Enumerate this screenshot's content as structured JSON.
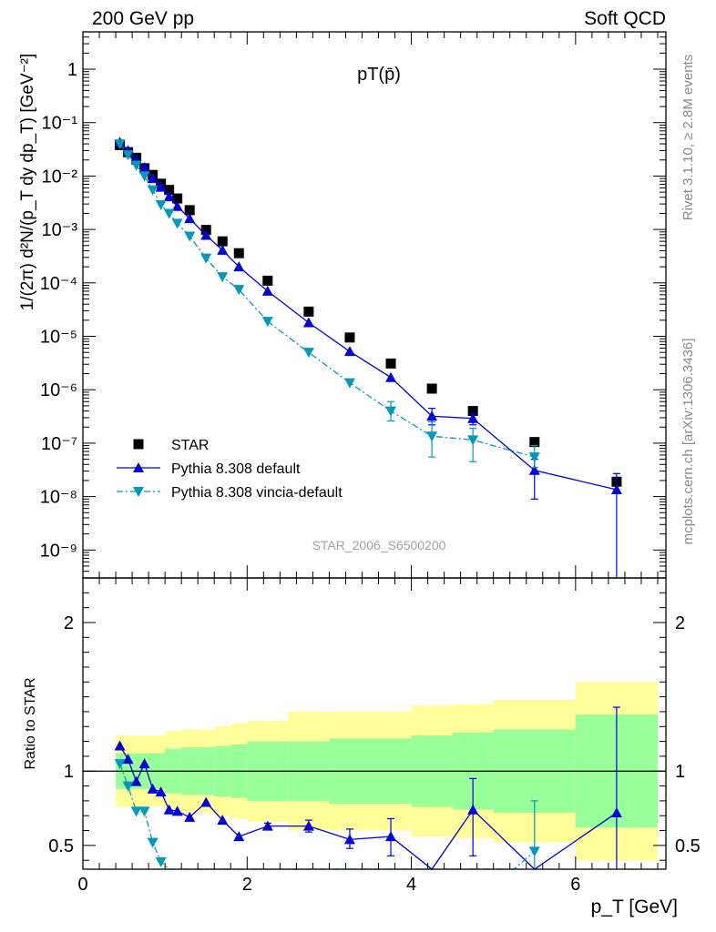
{
  "header": {
    "left": "200 GeV pp",
    "right": "Soft QCD",
    "plot_title": "pT(p̄)"
  },
  "side_labels": {
    "rivet": "Rivet 3.1.10, ≥ 2.8M events",
    "mcplots": "mcplots.cern.ch [arXiv:1306.3436]"
  },
  "watermark": "STAR_2006_S6500200",
  "colors": {
    "data": "#000000",
    "default": "#0000dd",
    "vincia": "#0099bb",
    "band_inner": "#99ff99",
    "band_outer": "#ffff99"
  },
  "chart_data": [
    {
      "type": "scatter",
      "panel": "main",
      "ylabel": "1/(2π) d²N/(p_T dy dp_T) [GeV⁻²]",
      "yscale": "log",
      "ylim": [
        3e-10,
        5
      ],
      "xlim": [
        0,
        7.1
      ],
      "ytick_labels": [
        "10⁻⁹",
        "10⁻⁸",
        "10⁻⁷",
        "10⁻⁶",
        "10⁻⁵",
        "10⁻⁴",
        "10⁻³",
        "10⁻²",
        "10⁻¹",
        "1"
      ],
      "legend_position": "lower-left",
      "series": [
        {
          "name": "STAR",
          "marker": "square",
          "x": [
            0.45,
            0.55,
            0.65,
            0.75,
            0.85,
            0.95,
            1.05,
            1.15,
            1.3,
            1.5,
            1.7,
            1.9,
            2.25,
            2.75,
            3.25,
            3.75,
            4.25,
            4.75,
            5.5,
            6.5
          ],
          "y": [
            0.038,
            0.028,
            0.022,
            0.014,
            0.0105,
            0.0072,
            0.0055,
            0.0038,
            0.0023,
            0.00098,
            0.0006,
            0.00036,
            0.00011,
            2.9e-05,
            9.5e-06,
            3.1e-06,
            1.05e-06,
            4e-07,
            1.05e-07,
            1.9e-08
          ]
        },
        {
          "name": "Pythia 8.308 default",
          "marker": "triangle-up",
          "x": [
            0.45,
            0.55,
            0.65,
            0.75,
            0.85,
            0.95,
            1.05,
            1.15,
            1.3,
            1.5,
            1.7,
            1.9,
            2.25,
            2.75,
            3.25,
            3.75,
            4.25,
            4.75,
            5.5,
            6.5
          ],
          "y": [
            0.043,
            0.03,
            0.02,
            0.0145,
            0.009,
            0.0062,
            0.0041,
            0.0027,
            0.0016,
            0.00078,
            0.00041,
            0.0002,
            7e-05,
            1.8e-05,
            5.2e-06,
            1.7e-06,
            3.2e-07,
            2.9e-07,
            3.1e-08,
            1.35e-08
          ],
          "err_low": [
            null,
            null,
            null,
            null,
            null,
            null,
            null,
            null,
            null,
            null,
            null,
            null,
            null,
            null,
            null,
            null,
            2.2e-07,
            2.2e-07,
            9e-09,
            3e-10
          ],
          "err_high": [
            null,
            null,
            null,
            null,
            null,
            null,
            null,
            null,
            null,
            null,
            null,
            null,
            null,
            null,
            null,
            null,
            4.5e-07,
            3.6e-07,
            5e-08,
            2.7e-08
          ]
        },
        {
          "name": "Pythia 8.308 vincia-default",
          "marker": "triangle-down",
          "x": [
            0.45,
            0.55,
            0.65,
            0.75,
            0.85,
            0.95,
            1.05,
            1.15,
            1.3,
            1.5,
            1.7,
            1.9,
            2.25,
            2.75,
            3.25,
            3.75,
            4.25,
            4.75,
            5.5
          ],
          "y": [
            0.04,
            0.025,
            0.016,
            0.01,
            0.0055,
            0.0029,
            0.002,
            0.0013,
            0.00075,
            0.00029,
            0.00013,
            7.5e-05,
            1.9e-05,
            5e-06,
            1.35e-06,
            4e-07,
            1.35e-07,
            1.15e-07,
            5.5e-08
          ],
          "err_low": [
            null,
            null,
            null,
            null,
            null,
            null,
            null,
            null,
            null,
            null,
            null,
            null,
            null,
            null,
            null,
            2.6e-07,
            5.5e-08,
            4.5e-08,
            3.5e-08
          ],
          "err_high": [
            null,
            null,
            null,
            null,
            null,
            null,
            null,
            null,
            null,
            null,
            null,
            null,
            null,
            null,
            null,
            6e-07,
            2.5e-07,
            1.9e-07,
            9e-08
          ]
        }
      ]
    },
    {
      "type": "line",
      "panel": "ratio",
      "xlabel": "p_T [GeV]",
      "ylabel": "Ratio to STAR",
      "ylim": [
        0.34,
        2.3
      ],
      "xlim": [
        0,
        7.1
      ],
      "xticks": [
        0,
        2,
        4,
        6
      ],
      "yticks": [
        0.5,
        1,
        2
      ],
      "bands": {
        "x_edges": [
          0.4,
          1.0,
          1.2,
          1.4,
          1.6,
          1.8,
          2.0,
          2.5,
          3.0,
          3.5,
          4.0,
          4.5,
          5.0,
          6.0,
          7.0
        ],
        "inner_low": [
          0.88,
          0.85,
          0.84,
          0.84,
          0.83,
          0.82,
          0.8,
          0.8,
          0.78,
          0.78,
          0.76,
          0.74,
          0.72,
          0.62
        ],
        "inner_high": [
          1.12,
          1.15,
          1.16,
          1.16,
          1.17,
          1.18,
          1.2,
          1.2,
          1.22,
          1.22,
          1.24,
          1.26,
          1.28,
          1.38
        ],
        "outer_low": [
          0.76,
          0.73,
          0.72,
          0.72,
          0.7,
          0.68,
          0.66,
          0.6,
          0.6,
          0.6,
          0.56,
          0.55,
          0.52,
          0.4
        ],
        "outer_high": [
          1.24,
          1.27,
          1.28,
          1.28,
          1.3,
          1.32,
          1.34,
          1.4,
          1.4,
          1.4,
          1.44,
          1.45,
          1.48,
          1.6
        ]
      },
      "series": [
        {
          "name": "Pythia 8.308 default",
          "x": [
            0.45,
            0.55,
            0.65,
            0.75,
            0.85,
            0.95,
            1.05,
            1.15,
            1.3,
            1.5,
            1.7,
            1.9,
            2.25,
            2.75,
            3.25,
            3.75,
            4.25,
            4.75,
            5.5,
            6.5
          ],
          "y": [
            1.17,
            1.08,
            0.93,
            1.05,
            0.88,
            0.86,
            0.74,
            0.73,
            0.69,
            0.79,
            0.67,
            0.56,
            0.63,
            0.63,
            0.54,
            0.56,
            0.3,
            0.74,
            0.3,
            0.72
          ],
          "err_low": [
            null,
            null,
            null,
            null,
            null,
            null,
            null,
            null,
            null,
            null,
            null,
            null,
            0.61,
            0.59,
            0.48,
            0.43,
            null,
            0.43,
            null,
            0.34
          ],
          "err_high": [
            null,
            null,
            null,
            null,
            null,
            null,
            null,
            null,
            null,
            null,
            null,
            null,
            0.65,
            0.67,
            0.61,
            0.68,
            null,
            0.95,
            null,
            1.43
          ]
        },
        {
          "name": "Pythia 8.308 vincia-default",
          "x": [
            0.45,
            0.55,
            0.65,
            0.75,
            0.85,
            0.95,
            1.05,
            5.25,
            5.5
          ],
          "y": [
            1.05,
            0.9,
            0.73,
            0.73,
            0.52,
            0.39,
            0.3,
            0.3,
            0.46
          ],
          "err_low": [
            null,
            null,
            null,
            null,
            null,
            null,
            null,
            null,
            0.34
          ],
          "err_high": [
            null,
            null,
            null,
            null,
            null,
            null,
            null,
            null,
            0.8
          ]
        }
      ]
    }
  ]
}
